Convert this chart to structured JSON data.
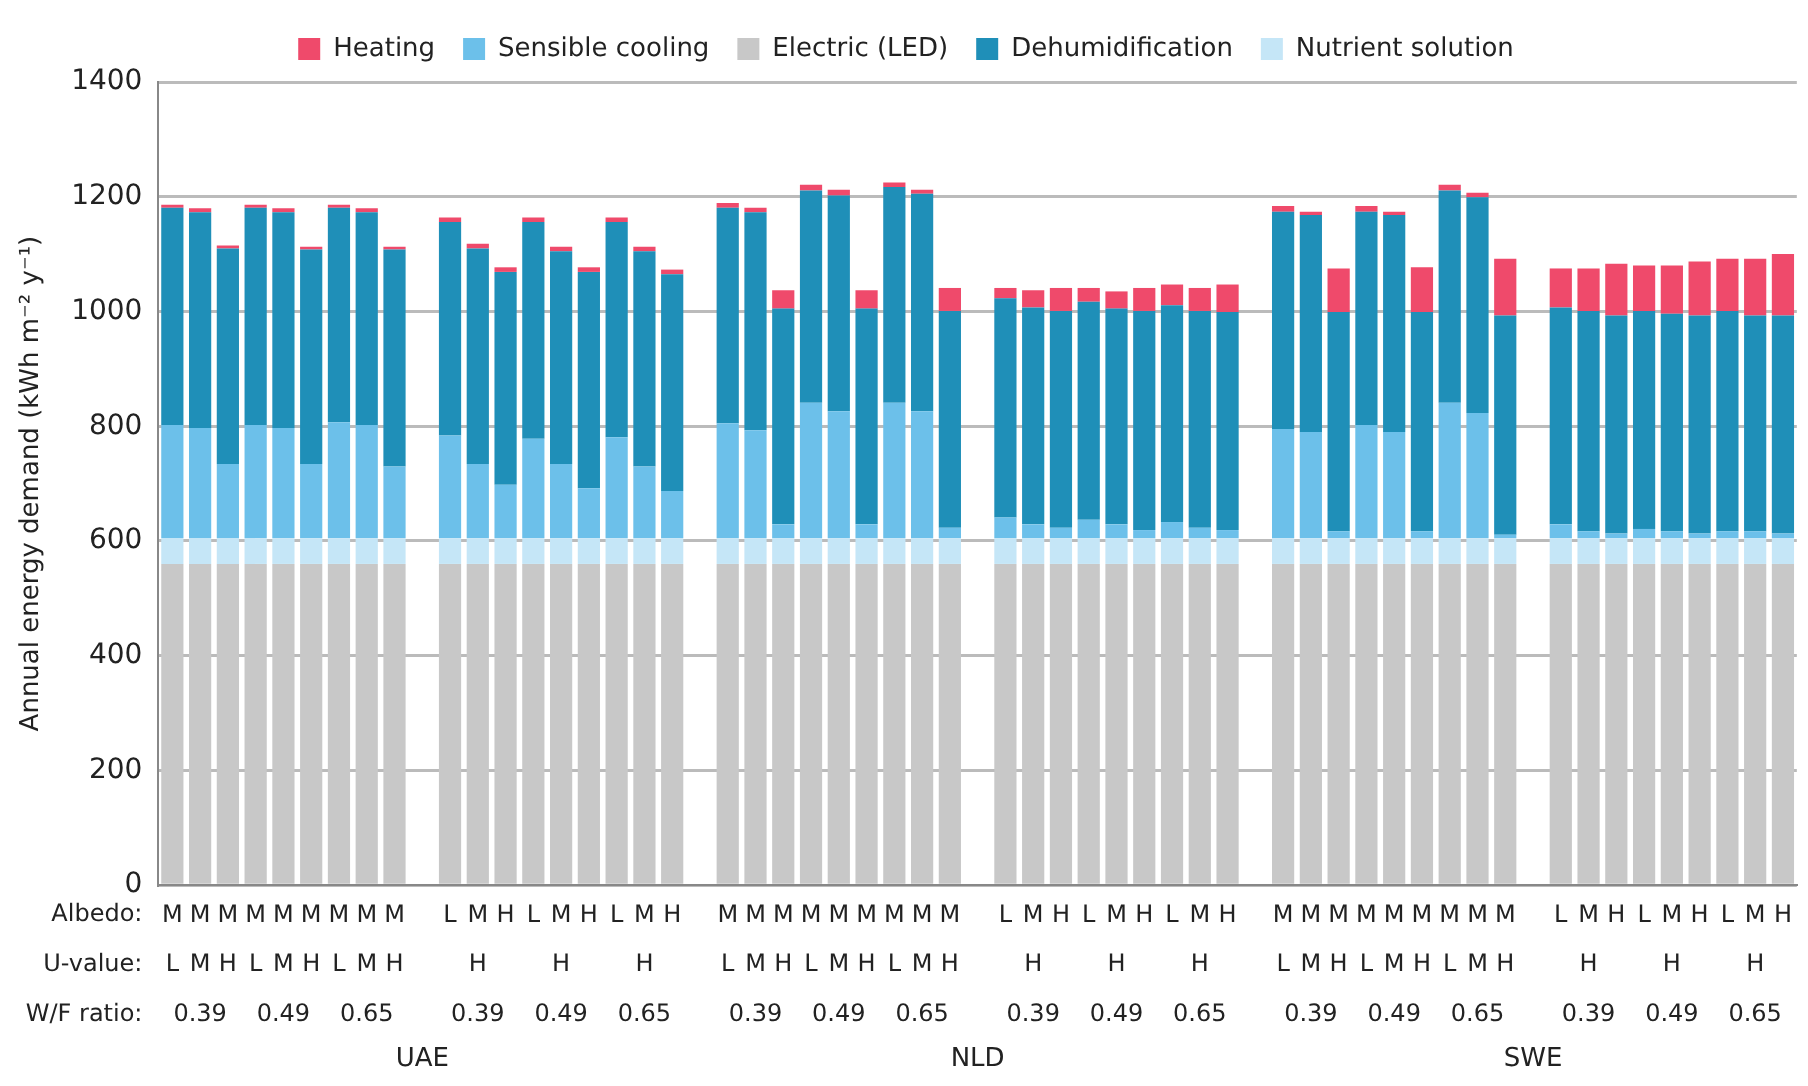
{
  "chart_data": {
    "type": "bar",
    "stacked": true,
    "ylabel": "Annual energy demand (kWh m⁻² y⁻¹)",
    "ylim": [
      0,
      1400
    ],
    "yticks": [
      0,
      200,
      400,
      600,
      800,
      1000,
      1200,
      1400
    ],
    "grid": "y",
    "legend": "top",
    "categories": [
      "M",
      "M",
      "M",
      "M",
      "M",
      "M",
      "M",
      "M",
      "M",
      null,
      "L",
      "M",
      "H",
      "L",
      "M",
      "H",
      "L",
      "M",
      "H",
      null,
      "M",
      "M",
      "M",
      "M",
      "M",
      "M",
      "M",
      "M",
      "M",
      null,
      "L",
      "M",
      "H",
      "L",
      "M",
      "H",
      "L",
      "M",
      "H",
      null,
      "M",
      "M",
      "M",
      "M",
      "M",
      "M",
      "M",
      "M",
      "M",
      null,
      "L",
      "M",
      "H",
      "L",
      "M",
      "H",
      "L",
      "M",
      "H"
    ],
    "annotations": [
      "Albedo:",
      "U-value:",
      "W/F ratio:",
      "L",
      "M",
      "H",
      "0.39",
      "0.49",
      "0.65",
      "UAE",
      "NLD",
      "SWE"
    ],
    "series": [
      {
        "name": "Electric (LED)",
        "color": "#c8c8c8",
        "values": [
          560,
          560,
          560,
          560,
          560,
          560,
          560,
          560,
          560,
          null,
          560,
          560,
          560,
          560,
          560,
          560,
          560,
          560,
          560,
          null,
          560,
          560,
          560,
          560,
          560,
          560,
          560,
          560,
          560,
          null,
          560,
          560,
          560,
          560,
          560,
          560,
          560,
          560,
          560,
          null,
          560,
          560,
          560,
          560,
          560,
          560,
          560,
          560,
          560,
          null,
          560,
          560,
          560,
          560,
          560,
          560,
          560,
          560,
          560
        ]
      },
      {
        "name": "Nutrient solution",
        "color": "#c5e6f7",
        "values": [
          45,
          45,
          45,
          45,
          45,
          45,
          45,
          45,
          45,
          null,
          45,
          45,
          45,
          45,
          45,
          45,
          45,
          45,
          45,
          null,
          45,
          45,
          45,
          45,
          45,
          45,
          45,
          45,
          45,
          null,
          45,
          45,
          45,
          45,
          45,
          45,
          45,
          45,
          45,
          null,
          45,
          45,
          45,
          45,
          45,
          45,
          45,
          45,
          45,
          null,
          45,
          45,
          45,
          45,
          45,
          45,
          45,
          45,
          45
        ]
      },
      {
        "name": "Sensible cooling",
        "color": "#6cc0ea",
        "values": [
          197,
          192,
          129,
          197,
          192,
          129,
          202,
          197,
          125,
          null,
          179,
          129,
          93,
          173,
          129,
          87,
          176,
          125,
          82,
          null,
          200,
          188,
          24,
          236,
          221,
          24,
          236,
          221,
          18,
          null,
          36,
          24,
          18,
          32,
          24,
          14,
          28,
          18,
          14,
          null,
          190,
          185,
          12,
          197,
          185,
          12,
          236,
          218,
          6,
          null,
          24,
          12,
          8,
          16,
          12,
          8,
          12,
          12,
          8
        ]
      },
      {
        "name": "Dehumidification",
        "color": "#1f8fb8",
        "values": [
          379,
          376,
          376,
          379,
          376,
          374,
          374,
          371,
          378,
          null,
          372,
          376,
          371,
          378,
          371,
          377,
          375,
          375,
          378,
          null,
          376,
          380,
          376,
          370,
          376,
          376,
          376,
          379,
          378,
          null,
          382,
          378,
          378,
          380,
          376,
          382,
          378,
          378,
          380,
          null,
          379,
          378,
          382,
          372,
          378,
          382,
          370,
          376,
          382,
          null,
          378,
          384,
          380,
          380,
          379,
          380,
          384,
          376,
          380
        ]
      },
      {
        "name": "Heating",
        "color": "#ef4a6b",
        "values": [
          5,
          7,
          5,
          5,
          7,
          5,
          5,
          7,
          5,
          null,
          8,
          8,
          8,
          8,
          8,
          8,
          8,
          8,
          8,
          null,
          8,
          8,
          32,
          10,
          10,
          32,
          8,
          7,
          40,
          null,
          18,
          30,
          40,
          24,
          30,
          40,
          36,
          40,
          48,
          null,
          10,
          6,
          76,
          10,
          6,
          78,
          10,
          8,
          99,
          null,
          68,
          74,
          90,
          79,
          84,
          94,
          91,
          99,
          107
        ]
      }
    ]
  }
}
